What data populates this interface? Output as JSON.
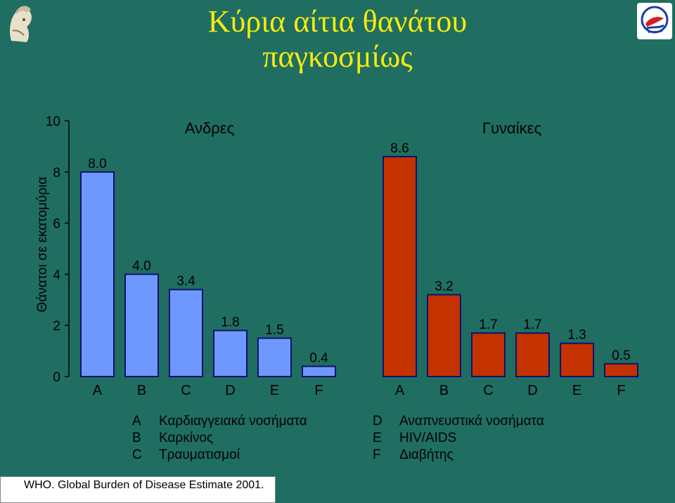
{
  "title_lines": [
    "Κύρια αίτια θανάτου",
    "παγκοσμίως"
  ],
  "colors": {
    "background": "#1f6e61",
    "title": "#f3ea10",
    "men_bar": "#6f98ff",
    "women_bar": "#c43200",
    "bar_outline": "#10106e"
  },
  "logos": {
    "left": "athena-helmet-logo",
    "right": "institute-logo"
  },
  "chart_data": {
    "type": "bar",
    "ylabel": "Θάνατοι σε εκατομύρια",
    "ylim": [
      0,
      10
    ],
    "yticks": [
      0,
      2,
      4,
      6,
      8,
      10
    ],
    "categories": [
      "A",
      "B",
      "C",
      "D",
      "E",
      "F"
    ],
    "series": [
      {
        "name": "Ανδρες",
        "values": [
          8.0,
          4.0,
          3.4,
          1.8,
          1.5,
          0.4
        ],
        "labels": [
          "8.0",
          "4.0",
          "3.4",
          "1.8",
          "1.5",
          "0.4"
        ]
      },
      {
        "name": "Γυναίκες",
        "values": [
          8.6,
          3.2,
          1.7,
          1.7,
          1.3,
          0.5
        ],
        "labels": [
          "8.6",
          "3.2",
          "1.7",
          "1.7",
          "1.3",
          "0.5"
        ]
      }
    ]
  },
  "legend": {
    "left": [
      {
        "key": "A",
        "text": "Καρδιαγγειακά νοσήματα"
      },
      {
        "key": "B",
        "text": "Καρκίνος"
      },
      {
        "key": "C",
        "text": "Τραυματισμοί"
      }
    ],
    "right": [
      {
        "key": "D",
        "text": "Αναπνευστικά νοσήματα"
      },
      {
        "key": "E",
        "text": "HIV/AIDS"
      },
      {
        "key": "F",
        "text": "Διαβήτης"
      }
    ]
  },
  "source": "WHO. Global Burden of Disease Estimate 2001."
}
